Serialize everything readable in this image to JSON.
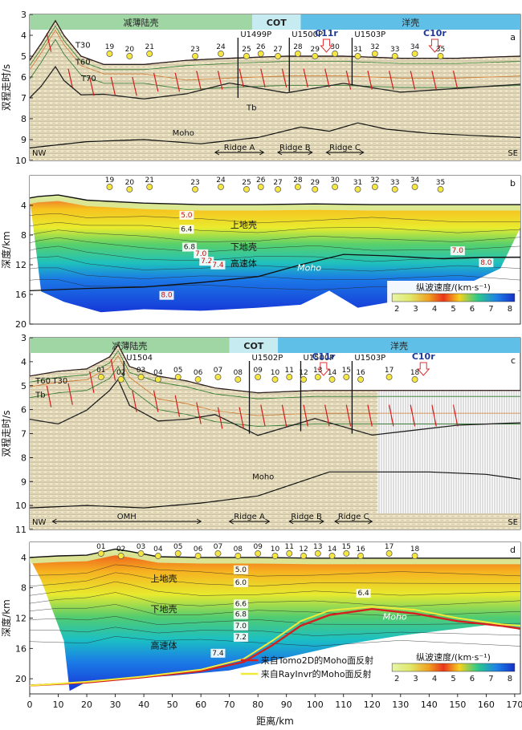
{
  "figure": {
    "x_axis_label": "距离/km",
    "x_ticks": [
      0,
      10,
      20,
      30,
      40,
      50,
      60,
      70,
      80,
      90,
      100,
      110,
      120,
      130,
      140,
      150,
      160,
      170
    ]
  },
  "chart_data": [
    {
      "panel": "a",
      "type": "seismic-section",
      "ylabel": "双程走时/s",
      "ylim": [
        10,
        3
      ],
      "y_ticks": [
        3,
        4,
        5,
        6,
        7,
        8,
        9,
        10
      ],
      "zones": [
        {
          "label": "减薄陆壳",
          "x": [
            0,
            78
          ],
          "color": "#9fd6a3"
        },
        {
          "label": "COT",
          "x": [
            78,
            95
          ],
          "color": "#c6ebf0"
        },
        {
          "label": "洋壳",
          "x": [
            95,
            172
          ],
          "color": "#5fbfe6"
        }
      ],
      "stations": [
        {
          "label": "19",
          "x": 28
        },
        {
          "label": "20",
          "x": 35
        },
        {
          "label": "21",
          "x": 42
        },
        {
          "label": "23",
          "x": 58
        },
        {
          "label": "24",
          "x": 67
        },
        {
          "label": "25",
          "x": 76
        },
        {
          "label": "26",
          "x": 81
        },
        {
          "label": "27",
          "x": 87
        },
        {
          "label": "28",
          "x": 94
        },
        {
          "label": "29",
          "x": 100
        },
        {
          "label": "30",
          "x": 107
        },
        {
          "label": "31",
          "x": 115
        },
        {
          "label": "32",
          "x": 121
        },
        {
          "label": "33",
          "x": 128
        },
        {
          "label": "34",
          "x": 135
        },
        {
          "label": "35",
          "x": 144
        }
      ],
      "wells": [
        {
          "label": "U1499P",
          "x": 73,
          "bottom": 7.0
        },
        {
          "label": "U1500P",
          "x": 91,
          "bottom": 6.7
        },
        {
          "label": "U1503P",
          "x": 113,
          "bottom": 6.4
        }
      ],
      "magnetic_anomalies": [
        {
          "label": "C11r",
          "x": 104
        },
        {
          "label": "C10r",
          "x": 142
        }
      ],
      "layer_labels": [
        "T30",
        "T60",
        "T70",
        "Tb",
        "Moho"
      ],
      "structures": [
        {
          "label": "Ridge A",
          "x": [
            65,
            82
          ]
        },
        {
          "label": "Ridge B",
          "x": [
            87,
            99
          ]
        },
        {
          "label": "Ridge C",
          "x": [
            104,
            117
          ]
        }
      ],
      "orientation": {
        "left": "NW",
        "right": "SE"
      },
      "seafloor": [
        [
          0,
          5.2
        ],
        [
          4,
          4.4
        ],
        [
          9,
          3.3
        ],
        [
          12,
          4.0
        ],
        [
          18,
          5.0
        ],
        [
          26,
          5.4
        ],
        [
          40,
          5.4
        ],
        [
          55,
          5.2
        ],
        [
          70,
          5.1
        ],
        [
          90,
          5.0
        ],
        [
          110,
          5.0
        ],
        [
          130,
          5.1
        ],
        [
          150,
          5.1
        ],
        [
          172,
          5.0
        ]
      ],
      "moho": [
        [
          0,
          9.4
        ],
        [
          20,
          9.1
        ],
        [
          40,
          9.0
        ],
        [
          60,
          9.2
        ],
        [
          80,
          8.9
        ],
        [
          95,
          8.4
        ],
        [
          105,
          8.6
        ],
        [
          115,
          8.2
        ],
        [
          125,
          8.5
        ],
        [
          140,
          8.7
        ],
        [
          155,
          8.8
        ],
        [
          172,
          8.9
        ]
      ]
    },
    {
      "panel": "b",
      "type": "velocity-model",
      "ylabel": "深度/km",
      "ylim": [
        20,
        0
      ],
      "y_ticks": [
        4,
        8,
        12,
        16,
        20
      ],
      "stations": [
        {
          "label": "19",
          "x": 28
        },
        {
          "label": "20",
          "x": 35
        },
        {
          "label": "21",
          "x": 42
        },
        {
          "label": "23",
          "x": 58
        },
        {
          "label": "24",
          "x": 67
        },
        {
          "label": "25",
          "x": 76
        },
        {
          "label": "26",
          "x": 81
        },
        {
          "label": "27",
          "x": 87
        },
        {
          "label": "28",
          "x": 94
        },
        {
          "label": "29",
          "x": 100
        },
        {
          "label": "30",
          "x": 107
        },
        {
          "label": "31",
          "x": 115
        },
        {
          "label": "32",
          "x": 121
        },
        {
          "label": "33",
          "x": 128
        },
        {
          "label": "34",
          "x": 135
        },
        {
          "label": "35",
          "x": 144
        }
      ],
      "layer_labels": [
        "上地壳",
        "下地壳",
        "高速体",
        "Moho"
      ],
      "velocity_contours": [
        "5.0",
        "6.4",
        "6.8",
        "7.0",
        "7.2",
        "7.4",
        "8.0",
        "7.0",
        "8.0"
      ],
      "colorbar": {
        "title": "纵波速度/(km·s⁻¹)",
        "ticks": [
          2,
          3,
          4,
          5,
          6,
          7,
          8
        ]
      },
      "seafloor": [
        [
          0,
          3.0
        ],
        [
          3,
          2.8
        ],
        [
          10,
          2.6
        ],
        [
          20,
          3.3
        ],
        [
          40,
          3.7
        ],
        [
          60,
          3.9
        ],
        [
          80,
          3.9
        ],
        [
          100,
          3.8
        ],
        [
          120,
          3.9
        ],
        [
          150,
          3.9
        ],
        [
          172,
          3.9
        ]
      ],
      "moho": [
        [
          0,
          15.5
        ],
        [
          20,
          15.2
        ],
        [
          40,
          15.0
        ],
        [
          60,
          14.4
        ],
        [
          80,
          13.6
        ],
        [
          95,
          12.0
        ],
        [
          110,
          10.6
        ],
        [
          125,
          10.8
        ],
        [
          145,
          11.2
        ],
        [
          160,
          11.0
        ],
        [
          172,
          11.0
        ]
      ],
      "model_bottom": [
        [
          4,
          15.6
        ],
        [
          12,
          17.0
        ],
        [
          25,
          18.4
        ],
        [
          40,
          18.0
        ],
        [
          60,
          18.2
        ],
        [
          80,
          17.8
        ],
        [
          95,
          17.4
        ],
        [
          105,
          15.5
        ],
        [
          115,
          17.8
        ],
        [
          130,
          16.8
        ],
        [
          150,
          15.2
        ],
        [
          165,
          12.5
        ],
        [
          172,
          7.0
        ]
      ]
    },
    {
      "panel": "c",
      "type": "seismic-section",
      "ylabel": "双程走时/s",
      "ylim": [
        11,
        3
      ],
      "y_ticks": [
        3,
        4,
        5,
        6,
        7,
        8,
        9,
        10,
        11
      ],
      "zones": [
        {
          "label": "减薄陆壳",
          "x": [
            0,
            70
          ],
          "color": "#9fd6a3"
        },
        {
          "label": "COT",
          "x": [
            70,
            87
          ],
          "color": "#c6ebf0"
        },
        {
          "label": "洋壳",
          "x": [
            87,
            172
          ],
          "color": "#5fbfe6"
        }
      ],
      "stations": [
        {
          "label": "01",
          "x": 25
        },
        {
          "label": "02",
          "x": 32
        },
        {
          "label": "03",
          "x": 39
        },
        {
          "label": "04",
          "x": 45
        },
        {
          "label": "05",
          "x": 52
        },
        {
          "label": "06",
          "x": 59
        },
        {
          "label": "07",
          "x": 66
        },
        {
          "label": "08",
          "x": 73
        },
        {
          "label": "09",
          "x": 80
        },
        {
          "label": "10",
          "x": 86
        },
        {
          "label": "11",
          "x": 91
        },
        {
          "label": "12",
          "x": 96
        },
        {
          "label": "13",
          "x": 101
        },
        {
          "label": "14",
          "x": 106
        },
        {
          "label": "15",
          "x": 111
        },
        {
          "label": "16",
          "x": 116
        },
        {
          "label": "17",
          "x": 126
        },
        {
          "label": "18",
          "x": 135
        }
      ],
      "wells": [
        {
          "label": "U1504",
          "x": 33,
          "bottom": 4.6
        },
        {
          "label": "U1502P",
          "x": 77,
          "bottom": 7.0
        },
        {
          "label": "U1500P",
          "x": 95,
          "bottom": 6.9
        },
        {
          "label": "U1503P",
          "x": 113,
          "bottom": 7.0
        }
      ],
      "magnetic_anomalies": [
        {
          "label": "C11r",
          "x": 103
        },
        {
          "label": "C10r",
          "x": 138
        }
      ],
      "layer_labels": [
        "T60",
        "T30",
        "Tb",
        "Moho"
      ],
      "structures": [
        {
          "label": "OMH",
          "x": [
            8,
            60
          ]
        },
        {
          "label": "Ridge A",
          "x": [
            70,
            84
          ]
        },
        {
          "label": "Ridge B",
          "x": [
            91,
            103
          ]
        },
        {
          "label": "Ridge C",
          "x": [
            107,
            120
          ]
        }
      ],
      "orientation": {
        "left": "NW",
        "right": "SE"
      },
      "seafloor": [
        [
          0,
          4.6
        ],
        [
          10,
          4.4
        ],
        [
          20,
          4.3
        ],
        [
          28,
          3.8
        ],
        [
          31,
          3.3
        ],
        [
          35,
          4.2
        ],
        [
          45,
          4.6
        ],
        [
          55,
          4.8
        ],
        [
          65,
          5.1
        ],
        [
          80,
          5.3
        ],
        [
          100,
          5.2
        ],
        [
          120,
          5.2
        ],
        [
          150,
          5.2
        ],
        [
          172,
          5.2
        ]
      ],
      "moho": [
        [
          0,
          10.1
        ],
        [
          20,
          10.0
        ],
        [
          40,
          10.1
        ],
        [
          60,
          9.9
        ],
        [
          80,
          9.6
        ],
        [
          95,
          9.0
        ],
        [
          105,
          8.6
        ],
        [
          120,
          8.6
        ],
        [
          140,
          8.6
        ],
        [
          160,
          8.7
        ],
        [
          172,
          8.9
        ]
      ],
      "processed_x_end": 122
    },
    {
      "panel": "d",
      "type": "velocity-model",
      "ylabel": "深度/km",
      "ylim": [
        22,
        2
      ],
      "y_ticks": [
        4,
        8,
        12,
        16,
        20
      ],
      "stations": [
        {
          "label": "01",
          "x": 25
        },
        {
          "label": "02",
          "x": 32
        },
        {
          "label": "03",
          "x": 39
        },
        {
          "label": "04",
          "x": 45
        },
        {
          "label": "05",
          "x": 52
        },
        {
          "label": "06",
          "x": 59
        },
        {
          "label": "07",
          "x": 66
        },
        {
          "label": "08",
          "x": 73
        },
        {
          "label": "09",
          "x": 80
        },
        {
          "label": "10",
          "x": 86
        },
        {
          "label": "11",
          "x": 91
        },
        {
          "label": "12",
          "x": 96
        },
        {
          "label": "13",
          "x": 101
        },
        {
          "label": "14",
          "x": 106
        },
        {
          "label": "15",
          "x": 111
        },
        {
          "label": "16",
          "x": 116
        },
        {
          "label": "17",
          "x": 126
        },
        {
          "label": "18",
          "x": 135
        }
      ],
      "layer_labels": [
        "上地壳",
        "下地壳",
        "高速体",
        "Moho"
      ],
      "velocity_contours": [
        "5.0",
        "6.0",
        "6.4",
        "6.6",
        "6.8",
        "7.0",
        "7.2",
        "7.4"
      ],
      "colorbar": {
        "title": "纵波速度/(km·s⁻¹)",
        "ticks": [
          2,
          3,
          4,
          5,
          6,
          7,
          8
        ]
      },
      "legend": [
        {
          "label": "来自Tomo2D的Moho面反射",
          "color": "#d42020"
        },
        {
          "label": "来自RayInvr的Moho面反射",
          "color": "#f2ea3a"
        }
      ],
      "seafloor": [
        [
          0,
          4.0
        ],
        [
          10,
          3.8
        ],
        [
          20,
          3.7
        ],
        [
          30,
          2.9
        ],
        [
          35,
          3.2
        ],
        [
          45,
          3.9
        ],
        [
          60,
          4.0
        ],
        [
          80,
          4.0
        ],
        [
          100,
          4.1
        ],
        [
          130,
          4.1
        ],
        [
          172,
          4.1
        ]
      ],
      "moho_tomo2d": [
        [
          0,
          20.9
        ],
        [
          20,
          20.5
        ],
        [
          40,
          19.8
        ],
        [
          60,
          19.0
        ],
        [
          75,
          17.8
        ],
        [
          85,
          15.6
        ],
        [
          95,
          13.0
        ],
        [
          105,
          11.6
        ],
        [
          120,
          10.8
        ],
        [
          135,
          11.4
        ],
        [
          150,
          12.4
        ],
        [
          165,
          13.0
        ],
        [
          172,
          13.4
        ]
      ],
      "moho_rayinvr": [
        [
          0,
          20.9
        ],
        [
          20,
          20.4
        ],
        [
          40,
          19.7
        ],
        [
          60,
          18.8
        ],
        [
          75,
          17.4
        ],
        [
          85,
          15.0
        ],
        [
          95,
          12.4
        ],
        [
          105,
          11.0
        ],
        [
          120,
          10.5
        ],
        [
          135,
          10.9
        ],
        [
          150,
          12.0
        ],
        [
          165,
          12.8
        ],
        [
          172,
          13.0
        ]
      ]
    }
  ]
}
